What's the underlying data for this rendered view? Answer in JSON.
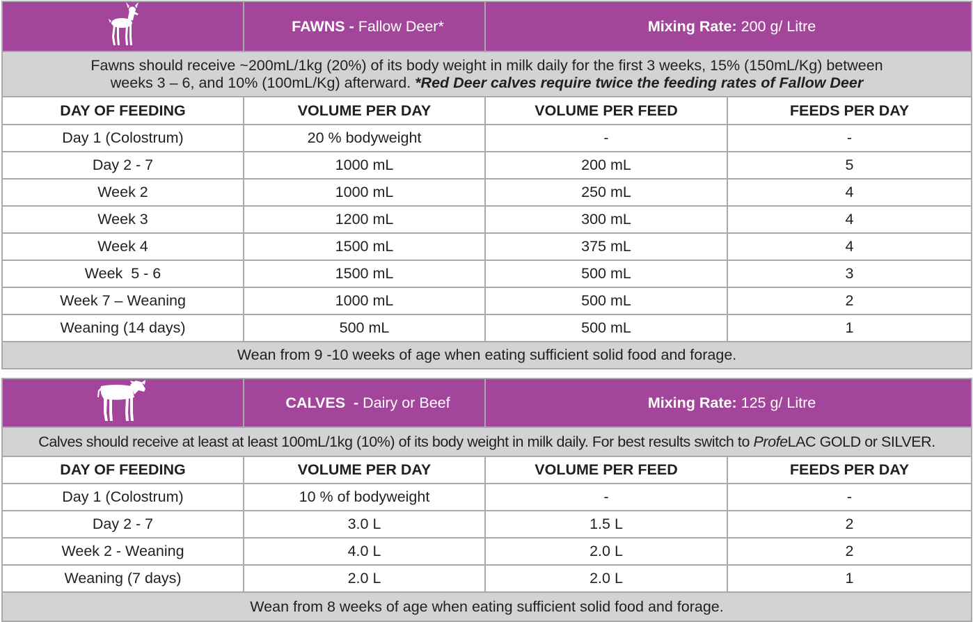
{
  "fawns": {
    "animal_icon": "deer-icon",
    "title": "FAWNS -",
    "subtitle": " Fallow Deer*",
    "mixing_label": "Mixing Rate:",
    "mixing_value": " 200 g/ Litre",
    "note_line1": "Fawns should receive ~200mL/1kg (20%) of its body weight in milk daily for the first 3 weeks, 15% (150mL/Kg) between",
    "note_line2": "weeks 3 – 6, and 10% (100mL/Kg) afterward.  ",
    "note_emphasis": "*Red Deer calves require twice the feeding rates of Fallow Deer",
    "columns": [
      "DAY OF FEEDING",
      "VOLUME PER DAY",
      "VOLUME PER FEED",
      "FEEDS PER DAY"
    ],
    "rows": [
      [
        "Day 1 (Colostrum)",
        "20 % bodyweight",
        "-",
        "-"
      ],
      [
        "Day 2 - 7",
        "1000 mL",
        "200 mL",
        "5"
      ],
      [
        "Week 2",
        "1000 mL",
        "250 mL",
        "4"
      ],
      [
        "Week 3",
        "1200 mL",
        "300 mL",
        "4"
      ],
      [
        "Week 4",
        "1500 mL",
        "375 mL",
        "4"
      ],
      [
        "Week  5 - 6",
        "1500 mL",
        "500 mL",
        "3"
      ],
      [
        "Week 7 – Weaning",
        "1000 mL",
        "500 mL",
        "2"
      ],
      [
        "Weaning (14 days)",
        "500 mL",
        "500 mL",
        "1"
      ]
    ],
    "footer": "Wean from 9 -10 weeks of age when eating sufficient solid food and forage."
  },
  "calves": {
    "animal_icon": "calf-icon",
    "title": "CALVES  -",
    "subtitle": " Dairy or Beef",
    "mixing_label": "Mixing Rate:",
    "mixing_value": " 125 g/ Litre",
    "note_before": "Calves should receive at least at least 100mL/1kg (10%) of its body weight in milk daily. For best results switch to ",
    "note_brand_italic": "Profe",
    "note_after": "LAC GOLD or SILVER.",
    "columns": [
      "DAY OF FEEDING",
      "VOLUME PER DAY",
      "VOLUME PER FEED",
      "FEEDS PER DAY"
    ],
    "rows": [
      [
        "Day 1 (Colostrum)",
        "10 % of bodyweight",
        "-",
        "-"
      ],
      [
        "Day 2 - 7",
        "3.0 L",
        "1.5 L",
        "2"
      ],
      [
        "Week 2 - Weaning",
        "4.0 L",
        "2.0 L",
        "2"
      ],
      [
        "Weaning (7 days)",
        "2.0 L",
        "2.0 L",
        "1"
      ]
    ],
    "footer": "Wean from 8 weeks of age when eating sufficient solid food and forage."
  },
  "colors": {
    "header_purple": "#a3459a",
    "band_gray": "#d1d3d4",
    "border_gray": "#a7a9ac"
  }
}
